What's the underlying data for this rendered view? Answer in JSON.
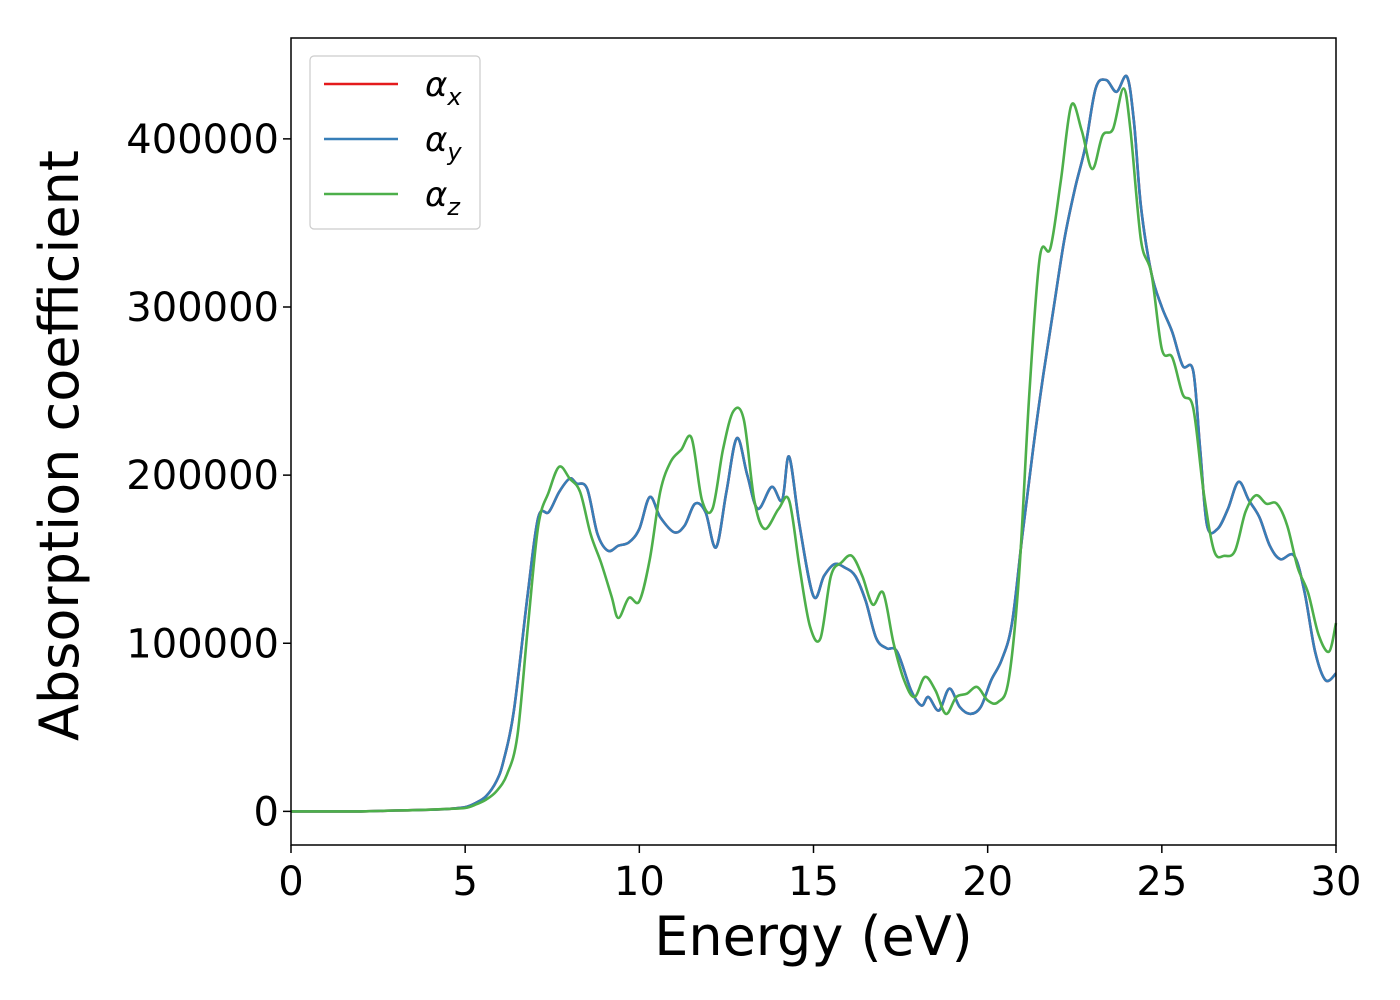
{
  "chart_data": {
    "type": "line",
    "title": "",
    "xlabel": "Energy (eV)",
    "ylabel": "Absorption coefficient",
    "xlim": [
      0,
      30
    ],
    "ylim": [
      -20000,
      460000
    ],
    "xticks": [
      0,
      5,
      10,
      15,
      20,
      25,
      30
    ],
    "xtick_labels": [
      "0",
      "5",
      "10",
      "15",
      "20",
      "25",
      "30"
    ],
    "yticks": [
      0,
      100000,
      200000,
      300000,
      400000
    ],
    "ytick_labels": [
      "0",
      "100000",
      "200000",
      "300000",
      "400000"
    ],
    "grid": false,
    "legend_position": "top-left",
    "series": [
      {
        "name": "α",
        "subscript": "x",
        "color": "#e41a1c",
        "x": [
          0,
          1,
          2,
          3,
          4,
          4.5,
          5,
          5.3,
          5.6,
          5.9,
          6.1,
          6.4,
          6.8,
          7.1,
          7.4,
          7.7,
          8.0,
          8.2,
          8.5,
          8.8,
          9.1,
          9.4,
          9.7,
          10.0,
          10.3,
          10.6,
          11.0,
          11.3,
          11.6,
          11.9,
          12.2,
          12.5,
          12.8,
          13.1,
          13.4,
          13.8,
          14.1,
          14.3,
          14.6,
          15.0,
          15.3,
          15.6,
          15.9,
          16.2,
          16.5,
          16.8,
          17.1,
          17.4,
          17.8,
          18.1,
          18.3,
          18.6,
          18.9,
          19.2,
          19.5,
          19.8,
          20.1,
          20.4,
          20.7,
          21.0,
          21.3,
          21.6,
          21.9,
          22.2,
          22.5,
          22.8,
          23.1,
          23.4,
          23.7,
          24.0,
          24.2,
          24.4,
          24.7,
          25.0,
          25.3,
          25.6,
          25.9,
          26.1,
          26.3,
          26.6,
          26.9,
          27.2,
          27.5,
          27.8,
          28.1,
          28.4,
          28.8,
          29.1,
          29.4,
          29.7,
          30.0
        ],
        "values": [
          0,
          0,
          0,
          500,
          1000,
          1500,
          2500,
          5000,
          9000,
          18000,
          30000,
          60000,
          130000,
          175000,
          178000,
          190000,
          198000,
          195000,
          192000,
          165000,
          155000,
          158000,
          160000,
          168000,
          187000,
          175000,
          166000,
          170000,
          183000,
          178000,
          157000,
          190000,
          222000,
          200000,
          180000,
          193000,
          185000,
          211000,
          170000,
          128000,
          140000,
          147000,
          145000,
          140000,
          125000,
          103000,
          97000,
          95000,
          72000,
          63000,
          68000,
          60000,
          73000,
          62000,
          58000,
          62000,
          78000,
          90000,
          112000,
          165000,
          215000,
          260000,
          300000,
          340000,
          370000,
          395000,
          430000,
          435000,
          428000,
          437000,
          410000,
          360000,
          320000,
          300000,
          285000,
          265000,
          262000,
          215000,
          170000,
          168000,
          180000,
          196000,
          185000,
          175000,
          158000,
          150000,
          152000,
          130000,
          95000,
          78000,
          82000
        ]
      },
      {
        "name": "α",
        "subscript": "y",
        "color": "#377eb8",
        "x": [
          0,
          1,
          2,
          3,
          4,
          4.5,
          5,
          5.3,
          5.6,
          5.9,
          6.1,
          6.4,
          6.8,
          7.1,
          7.4,
          7.7,
          8.0,
          8.2,
          8.5,
          8.8,
          9.1,
          9.4,
          9.7,
          10.0,
          10.3,
          10.6,
          11.0,
          11.3,
          11.6,
          11.9,
          12.2,
          12.5,
          12.8,
          13.1,
          13.4,
          13.8,
          14.1,
          14.3,
          14.6,
          15.0,
          15.3,
          15.6,
          15.9,
          16.2,
          16.5,
          16.8,
          17.1,
          17.4,
          17.8,
          18.1,
          18.3,
          18.6,
          18.9,
          19.2,
          19.5,
          19.8,
          20.1,
          20.4,
          20.7,
          21.0,
          21.3,
          21.6,
          21.9,
          22.2,
          22.5,
          22.8,
          23.1,
          23.4,
          23.7,
          24.0,
          24.2,
          24.4,
          24.7,
          25.0,
          25.3,
          25.6,
          25.9,
          26.1,
          26.3,
          26.6,
          26.9,
          27.2,
          27.5,
          27.8,
          28.1,
          28.4,
          28.8,
          29.1,
          29.4,
          29.7,
          30.0
        ],
        "values": [
          0,
          0,
          0,
          500,
          1000,
          1500,
          2500,
          5000,
          9000,
          18000,
          30000,
          60000,
          130000,
          175000,
          178000,
          190000,
          198000,
          195000,
          192000,
          165000,
          155000,
          158000,
          160000,
          168000,
          187000,
          175000,
          166000,
          170000,
          183000,
          178000,
          157000,
          190000,
          222000,
          200000,
          180000,
          193000,
          185000,
          211000,
          170000,
          128000,
          140000,
          147000,
          145000,
          140000,
          125000,
          103000,
          97000,
          95000,
          72000,
          63000,
          68000,
          60000,
          73000,
          62000,
          58000,
          62000,
          78000,
          90000,
          112000,
          165000,
          215000,
          260000,
          300000,
          340000,
          370000,
          395000,
          430000,
          435000,
          428000,
          437000,
          410000,
          360000,
          320000,
          300000,
          285000,
          265000,
          262000,
          215000,
          170000,
          168000,
          180000,
          196000,
          185000,
          175000,
          158000,
          150000,
          152000,
          130000,
          95000,
          78000,
          82000
        ]
      },
      {
        "name": "α",
        "subscript": "z",
        "color": "#4daf4a",
        "x": [
          0,
          1,
          2,
          3,
          4,
          4.5,
          5,
          5.3,
          5.6,
          5.9,
          6.2,
          6.5,
          6.8,
          7.1,
          7.4,
          7.7,
          8.0,
          8.3,
          8.6,
          8.9,
          9.2,
          9.4,
          9.7,
          10.0,
          10.3,
          10.6,
          10.9,
          11.2,
          11.5,
          11.8,
          12.1,
          12.4,
          12.7,
          13.0,
          13.3,
          13.6,
          14.0,
          14.3,
          14.6,
          14.9,
          15.2,
          15.5,
          15.8,
          16.1,
          16.4,
          16.7,
          17.0,
          17.3,
          17.6,
          17.9,
          18.2,
          18.5,
          18.8,
          19.1,
          19.4,
          19.7,
          20.0,
          20.3,
          20.6,
          20.9,
          21.2,
          21.5,
          21.8,
          22.1,
          22.4,
          22.7,
          23.0,
          23.3,
          23.6,
          23.9,
          24.1,
          24.4,
          24.7,
          25.0,
          25.3,
          25.6,
          25.9,
          26.2,
          26.5,
          26.8,
          27.1,
          27.4,
          27.7,
          28.0,
          28.3,
          28.6,
          28.9,
          29.2,
          29.5,
          29.8,
          30.0
        ],
        "values": [
          0,
          0,
          0,
          500,
          1000,
          1500,
          2000,
          4000,
          7000,
          12000,
          22000,
          45000,
          110000,
          170000,
          190000,
          205000,
          198000,
          190000,
          165000,
          148000,
          128000,
          115000,
          127000,
          125000,
          150000,
          190000,
          208000,
          215000,
          222000,
          185000,
          180000,
          215000,
          238000,
          233000,
          185000,
          168000,
          180000,
          185000,
          145000,
          110000,
          103000,
          140000,
          148000,
          152000,
          140000,
          123000,
          130000,
          100000,
          78000,
          68000,
          80000,
          72000,
          58000,
          68000,
          70000,
          74000,
          66000,
          65000,
          78000,
          140000,
          250000,
          330000,
          335000,
          375000,
          420000,
          405000,
          382000,
          402000,
          406000,
          430000,
          405000,
          340000,
          320000,
          275000,
          270000,
          248000,
          240000,
          190000,
          155000,
          152000,
          155000,
          178000,
          188000,
          183000,
          183000,
          170000,
          145000,
          130000,
          105000,
          95000,
          112000
        ]
      }
    ]
  }
}
